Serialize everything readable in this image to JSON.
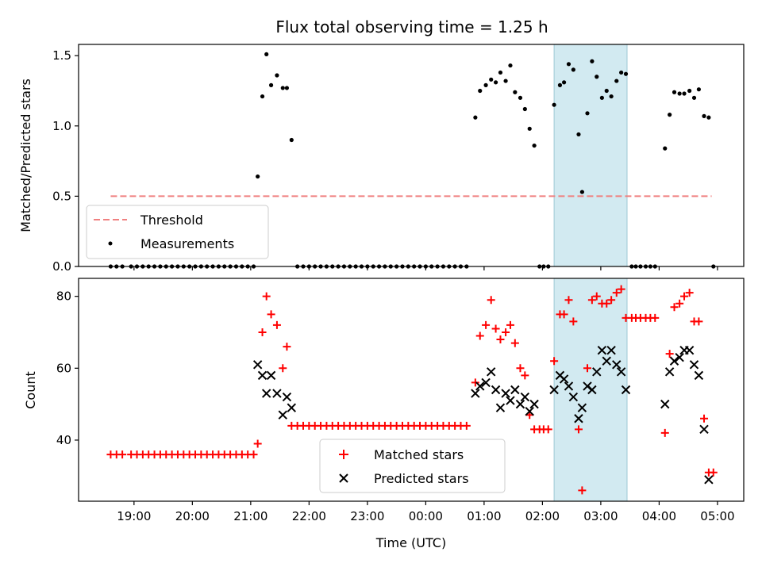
{
  "chart_data": [
    {
      "type": "scatter",
      "title": "Flux total observing time = 1.25 h",
      "xlabel": "",
      "ylabel": "Matched/Predicted stars",
      "xlim": [
        18.05,
        29.45
      ],
      "ylim": [
        0.0,
        1.58
      ],
      "yticks": [
        0.0,
        0.5,
        1.0,
        1.5
      ],
      "ytick_labels": [
        "0.0",
        "0.5",
        "1.0",
        "1.5"
      ],
      "shaded_span": [
        26.2,
        27.45
      ],
      "legend": {
        "position": "lower-left",
        "entries": [
          "Threshold",
          "Measurements"
        ]
      },
      "threshold": {
        "name": "Threshold",
        "value": 0.5,
        "x_range": [
          18.6,
          28.9
        ],
        "color": "#f08080"
      },
      "series": [
        {
          "name": "Measurements",
          "color": "#000000",
          "x": [
            18.6,
            18.7,
            18.8,
            18.95,
            19.05,
            19.15,
            19.25,
            19.35,
            19.45,
            19.55,
            19.65,
            19.75,
            19.85,
            19.95,
            20.05,
            20.15,
            20.25,
            20.35,
            20.45,
            20.55,
            20.65,
            20.75,
            20.85,
            20.95,
            21.05,
            21.12,
            21.2,
            21.27,
            21.35,
            21.45,
            21.55,
            21.62,
            21.7,
            21.8,
            21.9,
            22.0,
            22.1,
            22.2,
            22.3,
            22.4,
            22.5,
            22.6,
            22.7,
            22.8,
            22.9,
            23.0,
            23.1,
            23.2,
            23.3,
            23.4,
            23.5,
            23.6,
            23.7,
            23.8,
            23.9,
            24.0,
            24.1,
            24.2,
            24.3,
            24.4,
            24.5,
            24.6,
            24.7,
            24.85,
            24.93,
            25.03,
            25.12,
            25.2,
            25.28,
            25.37,
            25.45,
            25.53,
            25.62,
            25.7,
            25.78,
            25.86,
            25.95,
            26.02,
            26.1,
            26.2,
            26.3,
            26.37,
            26.45,
            26.53,
            26.62,
            26.68,
            26.77,
            26.85,
            26.93,
            27.02,
            27.1,
            27.18,
            27.27,
            27.35,
            27.43,
            27.53,
            27.6,
            27.68,
            27.77,
            27.85,
            27.93,
            28.1,
            28.18,
            28.26,
            28.35,
            28.43,
            28.52,
            28.6,
            28.68,
            28.77,
            28.85,
            28.93
          ],
          "y": [
            0,
            0,
            0,
            0,
            0,
            0,
            0,
            0,
            0,
            0,
            0,
            0,
            0,
            0,
            0,
            0,
            0,
            0,
            0,
            0,
            0,
            0,
            0,
            0,
            0,
            0.64,
            1.21,
            1.51,
            1.29,
            1.36,
            1.27,
            1.27,
            0.9,
            0,
            0,
            0,
            0,
            0,
            0,
            0,
            0,
            0,
            0,
            0,
            0,
            0,
            0,
            0,
            0,
            0,
            0,
            0,
            0,
            0,
            0,
            0,
            0,
            0,
            0,
            0,
            0,
            0,
            0,
            1.06,
            1.25,
            1.29,
            1.33,
            1.31,
            1.38,
            1.32,
            1.43,
            1.24,
            1.2,
            1.12,
            0.98,
            0.86,
            0,
            0,
            0,
            1.15,
            1.29,
            1.31,
            1.44,
            1.4,
            0.94,
            0.53,
            1.09,
            1.46,
            1.35,
            1.2,
            1.25,
            1.21,
            1.32,
            1.38,
            1.37,
            0,
            0,
            0,
            0,
            0,
            0,
            0.84,
            1.08,
            1.24,
            1.23,
            1.23,
            1.25,
            1.2,
            1.26,
            1.07,
            1.06,
            0
          ]
        }
      ]
    },
    {
      "type": "scatter",
      "title": "",
      "xlabel": "Time (UTC)",
      "ylabel": "Count",
      "xlim": [
        18.05,
        29.45
      ],
      "ylim": [
        23,
        85
      ],
      "yticks": [
        40,
        60,
        80
      ],
      "ytick_labels": [
        "40",
        "60",
        "80"
      ],
      "xticks": [
        19,
        20,
        21,
        22,
        23,
        24,
        25,
        26,
        27,
        28,
        29
      ],
      "xtick_labels": [
        "19:00",
        "20:00",
        "21:00",
        "22:00",
        "23:00",
        "00:00",
        "01:00",
        "02:00",
        "03:00",
        "04:00",
        "05:00"
      ],
      "shaded_span": [
        26.2,
        27.45
      ],
      "legend": {
        "position": "lower-center",
        "entries": [
          "Matched stars",
          "Predicted stars"
        ]
      },
      "series": [
        {
          "name": "Matched stars",
          "marker": "plus",
          "color": "#ff0000",
          "x": [
            18.6,
            18.7,
            18.8,
            18.95,
            19.05,
            19.15,
            19.25,
            19.35,
            19.45,
            19.55,
            19.65,
            19.75,
            19.85,
            19.95,
            20.05,
            20.15,
            20.25,
            20.35,
            20.45,
            20.55,
            20.65,
            20.75,
            20.85,
            20.95,
            21.05,
            21.12,
            21.2,
            21.27,
            21.35,
            21.45,
            21.55,
            21.62,
            21.7,
            21.8,
            21.9,
            22.0,
            22.1,
            22.2,
            22.3,
            22.4,
            22.5,
            22.6,
            22.7,
            22.8,
            22.9,
            23.0,
            23.1,
            23.2,
            23.3,
            23.4,
            23.5,
            23.6,
            23.7,
            23.8,
            23.9,
            24.0,
            24.1,
            24.2,
            24.3,
            24.4,
            24.5,
            24.6,
            24.7,
            24.85,
            24.93,
            25.03,
            25.12,
            25.2,
            25.28,
            25.37,
            25.45,
            25.53,
            25.62,
            25.7,
            25.78,
            25.86,
            25.95,
            26.02,
            26.1,
            26.2,
            26.3,
            26.37,
            26.45,
            26.53,
            26.62,
            26.68,
            26.77,
            26.85,
            26.93,
            27.02,
            27.1,
            27.18,
            27.27,
            27.35,
            27.43,
            27.53,
            27.6,
            27.68,
            27.77,
            27.85,
            27.93,
            28.1,
            28.18,
            28.26,
            28.35,
            28.43,
            28.52,
            28.6,
            28.68,
            28.77,
            28.85,
            28.93
          ],
          "y": [
            36,
            36,
            36,
            36,
            36,
            36,
            36,
            36,
            36,
            36,
            36,
            36,
            36,
            36,
            36,
            36,
            36,
            36,
            36,
            36,
            36,
            36,
            36,
            36,
            36,
            39,
            70,
            80,
            75,
            72,
            60,
            66,
            44,
            44,
            44,
            44,
            44,
            44,
            44,
            44,
            44,
            44,
            44,
            44,
            44,
            44,
            44,
            44,
            44,
            44,
            44,
            44,
            44,
            44,
            44,
            44,
            44,
            44,
            44,
            44,
            44,
            44,
            44,
            56,
            69,
            72,
            79,
            71,
            68,
            70,
            72,
            67,
            60,
            58,
            47,
            43,
            43,
            43,
            43,
            62,
            75,
            75,
            79,
            73,
            43,
            26,
            60,
            79,
            80,
            78,
            78,
            79,
            81,
            82,
            74,
            74,
            74,
            74,
            74,
            74,
            74,
            42,
            64,
            77,
            78,
            80,
            81,
            73,
            73,
            46,
            31,
            31
          ]
        },
        {
          "name": "Predicted stars",
          "marker": "x",
          "color": "#000000",
          "x": [
            21.12,
            21.2,
            21.27,
            21.35,
            21.45,
            21.55,
            21.62,
            21.7,
            24.85,
            24.93,
            25.03,
            25.12,
            25.2,
            25.28,
            25.37,
            25.45,
            25.53,
            25.62,
            25.7,
            25.78,
            25.86,
            26.2,
            26.3,
            26.37,
            26.45,
            26.53,
            26.62,
            26.68,
            26.77,
            26.85,
            26.93,
            27.02,
            27.1,
            27.18,
            27.27,
            27.35,
            27.43,
            28.1,
            28.18,
            28.26,
            28.35,
            28.43,
            28.52,
            28.6,
            28.68,
            28.77,
            28.85
          ],
          "y": [
            61,
            58,
            53,
            58,
            53,
            47,
            52,
            49,
            53,
            55,
            56,
            59,
            54,
            49,
            53,
            51,
            54,
            50,
            52,
            48,
            50,
            54,
            58,
            57,
            55,
            52,
            46,
            49,
            55,
            54,
            59,
            65,
            62,
            65,
            61,
            59,
            54,
            50,
            59,
            62,
            63,
            65,
            65,
            61,
            58,
            43,
            29
          ]
        }
      ]
    }
  ]
}
